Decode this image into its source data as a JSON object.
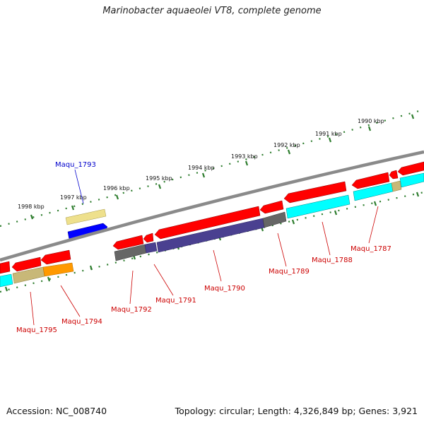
{
  "title": "Marinobacter aquaeolei VT8, complete genome",
  "footer": {
    "accession": "Accession: NC_008740",
    "summary": "Topology: circular; Length: 4,326,849 bp; Genes: 3,921"
  },
  "kbp_ticks": [
    "1990 kbp",
    "1991 kbp",
    "1992 kbp",
    "1993 kbp",
    "1994 kbp",
    "1995 kbp",
    "1996 kbp",
    "1997 kbp",
    "1998 kbp"
  ],
  "gene_labels": [
    {
      "text": "Maqu_1793",
      "color": "#0000cc"
    },
    {
      "text": "Maqu_1795",
      "color": "#cc0000"
    },
    {
      "text": "Maqu_1794",
      "color": "#cc0000"
    },
    {
      "text": "Maqu_1792",
      "color": "#cc0000"
    },
    {
      "text": "Maqu_1791",
      "color": "#cc0000"
    },
    {
      "text": "Maqu_1790",
      "color": "#cc0000"
    },
    {
      "text": "Maqu_1789",
      "color": "#cc0000"
    },
    {
      "text": "Maqu_1788",
      "color": "#cc0000"
    },
    {
      "text": "Maqu_1787",
      "color": "#cc0000"
    }
  ],
  "colors": {
    "backbone": "#808080",
    "tick": "#2e7d2e",
    "cds": "#ff0000",
    "blue_gene": "#0000ff",
    "khaki_gene": "#eee08c",
    "cyan_gene": "#00ffff",
    "gray_gene": "#666666",
    "navy_gene": "#4a4090",
    "orange_gene": "#ff9900",
    "olive_gene": "#c8b878"
  }
}
